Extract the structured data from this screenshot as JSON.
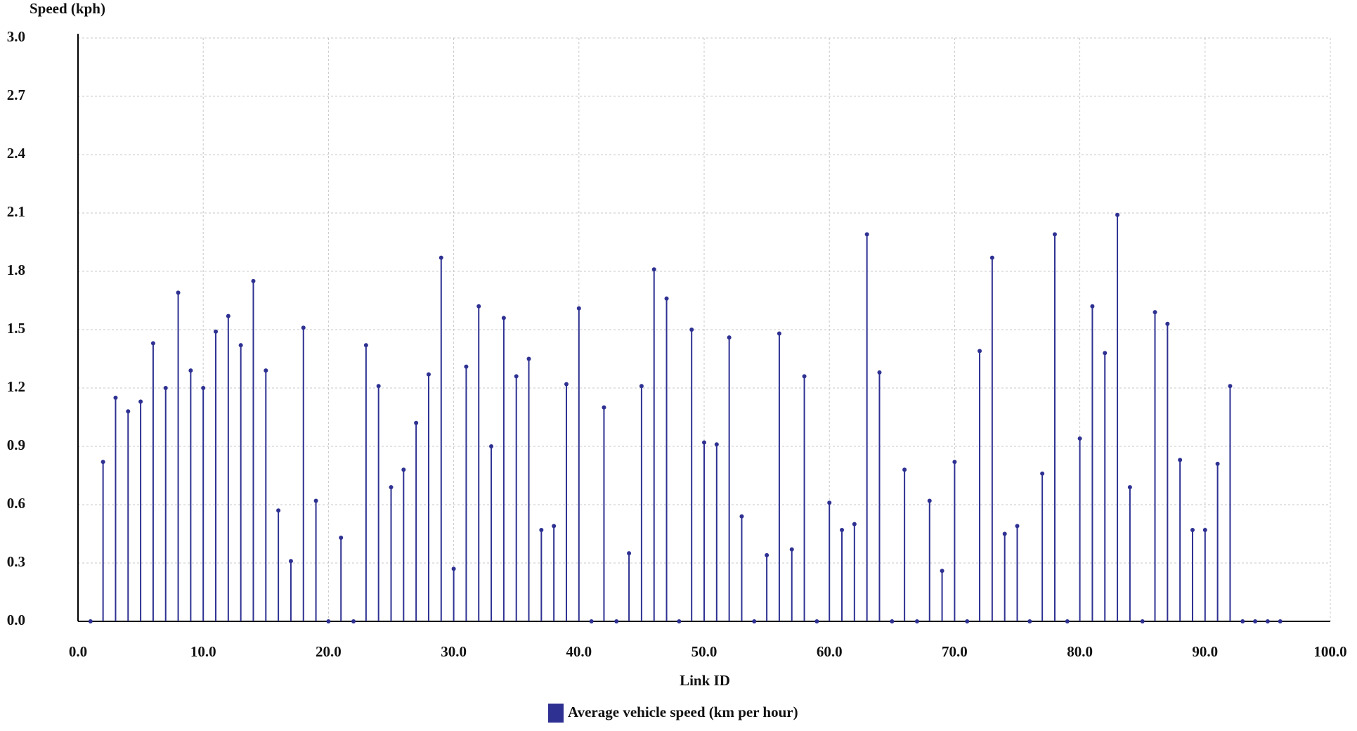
{
  "chart_data": {
    "type": "stem",
    "y_label": "Speed (kph)",
    "x_label": "Link ID",
    "x": [
      1,
      2,
      3,
      4,
      5,
      6,
      7,
      8,
      9,
      10,
      11,
      12,
      13,
      14,
      15,
      16,
      17,
      18,
      19,
      20,
      21,
      22,
      23,
      24,
      25,
      26,
      27,
      28,
      29,
      30,
      31,
      32,
      33,
      34,
      35,
      36,
      37,
      38,
      39,
      40,
      41,
      42,
      43,
      44,
      45,
      46,
      47,
      48,
      49,
      50,
      51,
      52,
      53,
      54,
      55,
      56,
      57,
      58,
      59,
      60,
      61,
      62,
      63,
      64,
      65,
      66,
      67,
      68,
      69,
      70,
      71,
      72,
      73,
      74,
      75,
      76,
      77,
      78,
      79,
      80,
      81,
      82,
      83,
      84,
      85,
      86,
      87,
      88,
      89,
      90,
      91,
      92,
      93,
      94,
      95,
      96
    ],
    "series": [
      {
        "name": "Average vehicle speed (km per hour)",
        "color": "#2e3192",
        "values": [
          0,
          0.82,
          1.15,
          1.08,
          1.13,
          1.43,
          1.2,
          1.69,
          1.29,
          1.2,
          1.49,
          1.57,
          1.42,
          1.75,
          1.29,
          0.57,
          0.31,
          1.51,
          0.62,
          0,
          0.43,
          0,
          1.42,
          1.21,
          0.69,
          0.78,
          1.02,
          1.27,
          1.87,
          0.27,
          1.31,
          1.62,
          0.9,
          1.56,
          1.26,
          1.35,
          0.47,
          0.49,
          1.22,
          1.61,
          0,
          1.1,
          0,
          0.35,
          1.21,
          1.81,
          1.66,
          0,
          1.5,
          0.92,
          0.91,
          1.46,
          0.54,
          0,
          0.34,
          1.48,
          0.37,
          1.26,
          0,
          0.61,
          0.47,
          0.5,
          1.99,
          1.28,
          0,
          0.78,
          0,
          0.62,
          0.26,
          0.82,
          0,
          1.39,
          1.87,
          0.45,
          0.49,
          0,
          0.76,
          1.99,
          0,
          0.94,
          1.62,
          1.38,
          2.09,
          0.69,
          0,
          1.59,
          1.53,
          0.83,
          0.47,
          0.47,
          0.81,
          1.21,
          0,
          0,
          0,
          0
        ]
      }
    ],
    "xlim": [
      0,
      100
    ],
    "ylim": [
      0,
      3
    ],
    "xticks": [
      {
        "value": 0,
        "label": "0.0"
      },
      {
        "value": 10,
        "label": "10.0"
      },
      {
        "value": 20,
        "label": "20.0"
      },
      {
        "value": 30,
        "label": "30.0"
      },
      {
        "value": 40,
        "label": "40.0"
      },
      {
        "value": 50,
        "label": "50.0"
      },
      {
        "value": 60,
        "label": "60.0"
      },
      {
        "value": 70,
        "label": "70.0"
      },
      {
        "value": 80,
        "label": "80.0"
      },
      {
        "value": 90,
        "label": "90.0"
      },
      {
        "value": 100,
        "label": "100.0"
      }
    ],
    "yticks": [
      {
        "value": 0,
        "label": "0.0"
      },
      0.3,
      0.6,
      0.9,
      1.2,
      1.5,
      1.8,
      2.1,
      2.4,
      2.7,
      {
        "value": 3,
        "label": "3.0"
      }
    ],
    "grid": true
  }
}
